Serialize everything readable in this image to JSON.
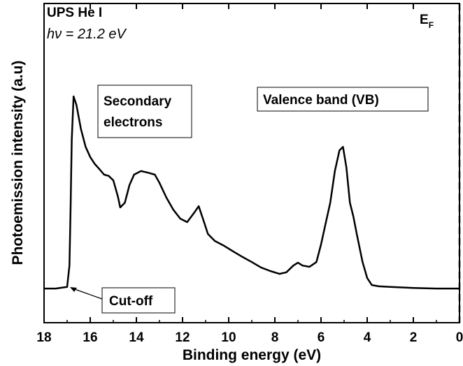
{
  "chart_data": {
    "type": "line",
    "xlabel": "Binding energy (eV)",
    "ylabel": "Photoemission intensity (a.u)",
    "xlim": [
      18,
      0
    ],
    "xticks": [
      18,
      16,
      14,
      12,
      10,
      8,
      6,
      4,
      2,
      0
    ],
    "ylim": [
      0,
      100
    ],
    "fermi_level": 0,
    "annotations": {
      "source": "UPS He I",
      "photon_energy": "hν = 21.2 eV",
      "fermi_label": {
        "text": "E",
        "subscript": "F"
      },
      "secondary": [
        "Secondary",
        "electrons"
      ],
      "valence": "Valence band (VB)",
      "cutoff": "Cut-off"
    },
    "series": [
      {
        "color": "#000000",
        "x": [
          18,
          17.5,
          17.0,
          16.9,
          16.85,
          16.8,
          16.72,
          16.6,
          16.4,
          16.2,
          16.0,
          15.8,
          15.6,
          15.4,
          15.2,
          15.0,
          14.8,
          14.7,
          14.5,
          14.3,
          14.1,
          13.8,
          13.5,
          13.2,
          13.0,
          12.7,
          12.4,
          12.1,
          11.8,
          11.5,
          11.3,
          11.1,
          10.9,
          10.6,
          10.2,
          9.8,
          9.4,
          9.0,
          8.6,
          8.2,
          7.8,
          7.5,
          7.2,
          7.0,
          6.8,
          6.5,
          6.2,
          6.0,
          5.8,
          5.6,
          5.4,
          5.2,
          5.05,
          4.9,
          4.75,
          4.6,
          4.45,
          4.2,
          4.0,
          3.8,
          3.5,
          3.0,
          2.0,
          1.0,
          0.0
        ],
        "values": [
          10.7,
          10.7,
          11.2,
          17.9,
          35.4,
          57.3,
          70.9,
          68.3,
          60.6,
          55.1,
          51.9,
          49.7,
          48.1,
          46.4,
          46.0,
          44.6,
          39.5,
          36.1,
          37.6,
          43.1,
          46.4,
          47.5,
          47.0,
          46.4,
          43.8,
          39.2,
          35.4,
          32.6,
          31.5,
          34.4,
          36.5,
          32.2,
          27.8,
          25.6,
          24.1,
          22.3,
          20.6,
          19.0,
          17.3,
          16.2,
          15.3,
          15.8,
          17.9,
          18.8,
          17.9,
          17.5,
          19.0,
          24.5,
          31.1,
          37.6,
          47.5,
          54.0,
          55.1,
          48.6,
          37.6,
          33.3,
          27.8,
          19.0,
          14.0,
          11.8,
          11.4,
          11.2,
          10.9,
          10.7,
          10.7
        ]
      }
    ]
  }
}
